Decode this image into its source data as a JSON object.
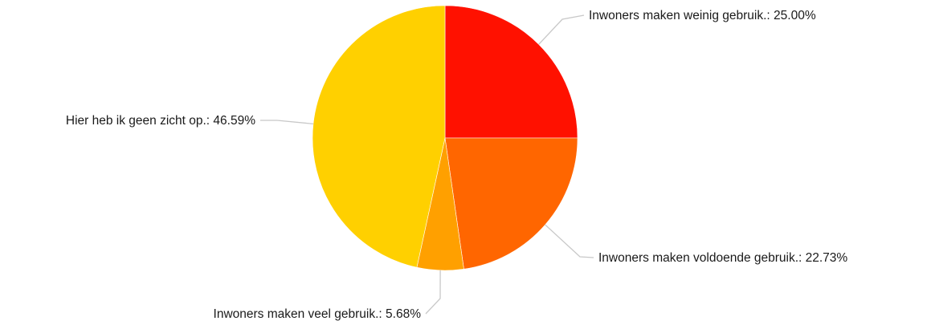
{
  "chart_data": {
    "type": "pie",
    "start_angle_deg": 0,
    "direction": "clockwise",
    "slices": [
      {
        "label": "Inwoners maken weinig gebruik.",
        "value": 25.0,
        "display": "Inwoners maken weinig gebruik.: 25.00%",
        "color": "#ff1100"
      },
      {
        "label": "Inwoners maken voldoende gebruik.",
        "value": 22.73,
        "display": "Inwoners maken voldoende gebruik.: 22.73%",
        "color": "#ff6600"
      },
      {
        "label": "Inwoners maken veel gebruik.",
        "value": 5.68,
        "display": "Inwoners maken veel gebruik.: 5.68%",
        "color": "#ffa000"
      },
      {
        "label": "Hier heb ik geen zicht op.",
        "value": 46.59,
        "display": "Hier heb ik geen zicht op.: 46.59%",
        "color": "#ffd000"
      }
    ]
  }
}
